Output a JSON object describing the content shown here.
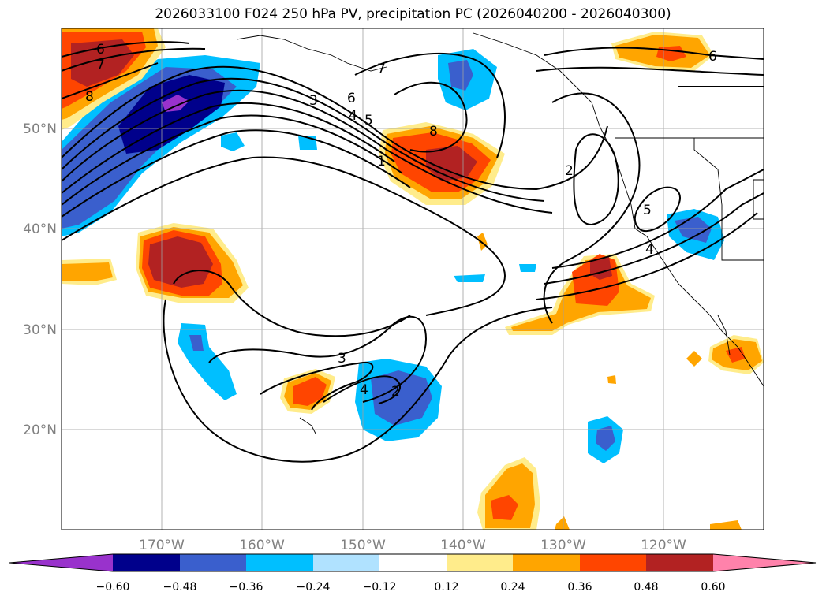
{
  "title": "2026033100 F024 250 hPa PV, precipitation PC (2026040200 - 2026040300)",
  "lat_labels": [
    "50°N",
    "40°N",
    "30°N",
    "20°N"
  ],
  "lon_labels": [
    "170°W",
    "160°W",
    "150°W",
    "140°W",
    "130°W",
    "120°W"
  ],
  "colorbar": {
    "ticks": [
      "−0.60",
      "−0.48",
      "−0.36",
      "−0.24",
      "−0.12",
      "0.12",
      "0.24",
      "0.36",
      "0.48",
      "0.60"
    ],
    "colors": [
      "#9932cc",
      "#00008b",
      "#3a5fcd",
      "#00bfff",
      "#b0e2ff",
      "#ffffff",
      "#ffec8b",
      "#ffa500",
      "#ff4500",
      "#b22222",
      "#ff82ab"
    ]
  },
  "contour_labels": [
    "6",
    "7",
    "8",
    "7",
    "6",
    "3",
    "4",
    "5",
    "1",
    "8",
    "2",
    "5",
    "4",
    "6",
    "3",
    "4",
    "2"
  ]
}
